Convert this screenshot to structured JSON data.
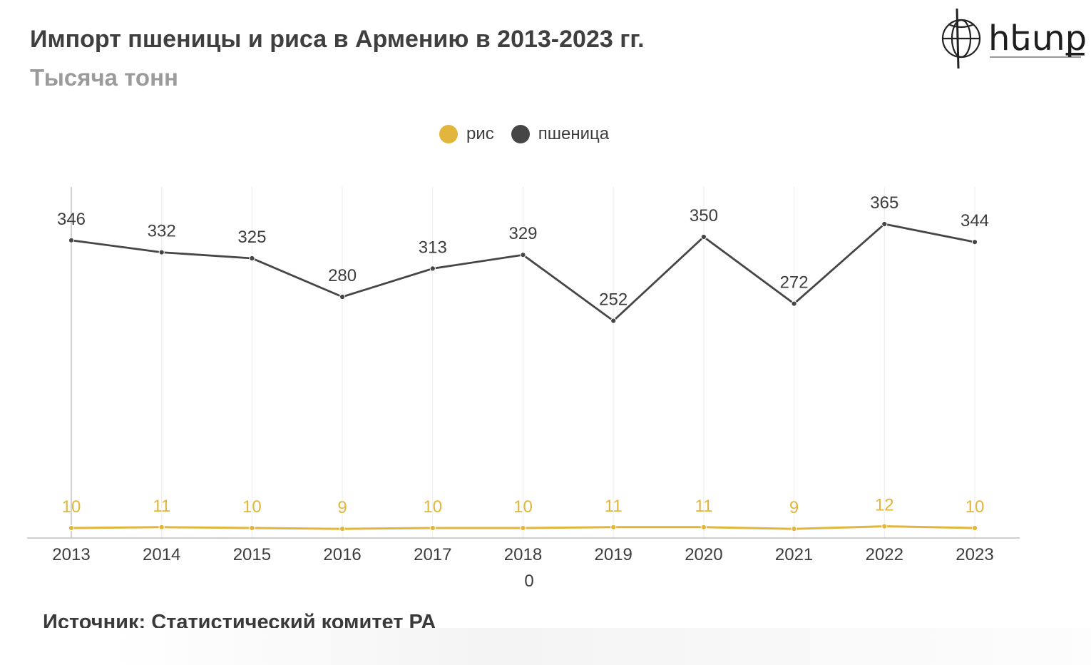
{
  "title": "Импорт пшеницы и риса в Армению в 2013-2023 гг.",
  "subtitle": "Тысяча тонн",
  "logo": {
    "text": "hետք",
    "icon": "globe-logo-icon"
  },
  "source": "Источник: Статистический комитет РА",
  "colors": {
    "rice": "#e2b63c",
    "wheat": "#464646",
    "grid": "#ececec",
    "axis": "#bdbdbd"
  },
  "chart_data": {
    "type": "line",
    "x": [
      "2013",
      "2014",
      "2015",
      "2016",
      "2017",
      "2018",
      "2019",
      "2020",
      "2021",
      "2022",
      "2023"
    ],
    "series": [
      {
        "name": "рис",
        "key": "rice",
        "values": [
          10,
          11,
          10,
          9,
          10,
          10,
          11,
          11,
          9,
          12,
          10
        ]
      },
      {
        "name": "пшеница",
        "key": "wheat",
        "values": [
          346,
          332,
          325,
          280,
          313,
          329,
          252,
          350,
          272,
          365,
          344
        ]
      }
    ],
    "axis_extra_label": "0",
    "ylim": [
      0,
      400
    ],
    "grid": "vertical",
    "legend_position": "top-center",
    "data_labels": true
  }
}
